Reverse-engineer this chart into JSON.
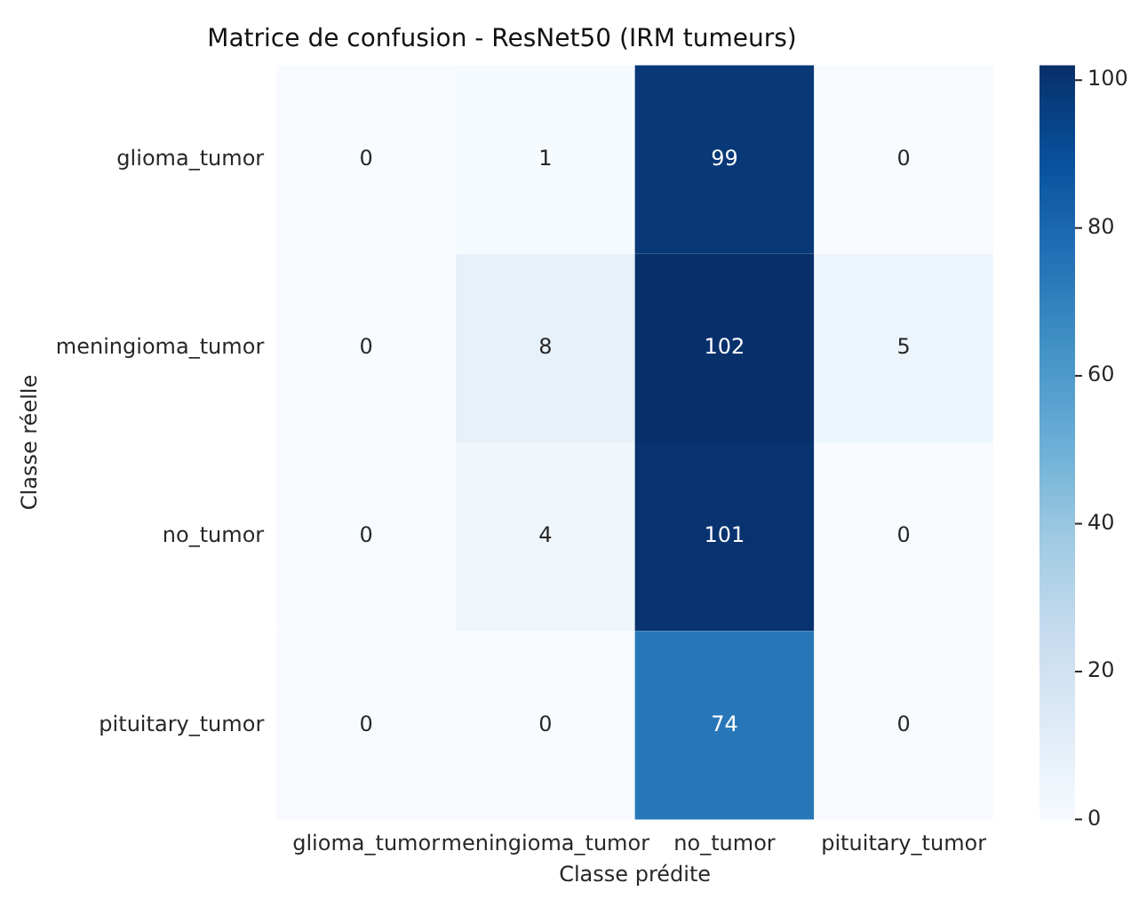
{
  "chart_data": {
    "type": "heatmap",
    "title": "Matrice de confusion - ResNet50 (IRM tumeurs)",
    "xlabel": "Classe prédite",
    "ylabel": "Classe réelle",
    "categories": [
      "glioma_tumor",
      "meningioma_tumor",
      "no_tumor",
      "pituitary_tumor"
    ],
    "y_categories": [
      "glioma_tumor",
      "meningioma_tumor",
      "no_tumor",
      "pituitary_tumor"
    ],
    "cells": [
      [
        0,
        1,
        99,
        0
      ],
      [
        0,
        8,
        102,
        5
      ],
      [
        0,
        4,
        101,
        0
      ],
      [
        0,
        0,
        74,
        0
      ]
    ],
    "clim": [
      0,
      102
    ],
    "cticks": [
      0,
      20,
      40,
      60,
      80,
      100
    ],
    "data_labels": true
  }
}
